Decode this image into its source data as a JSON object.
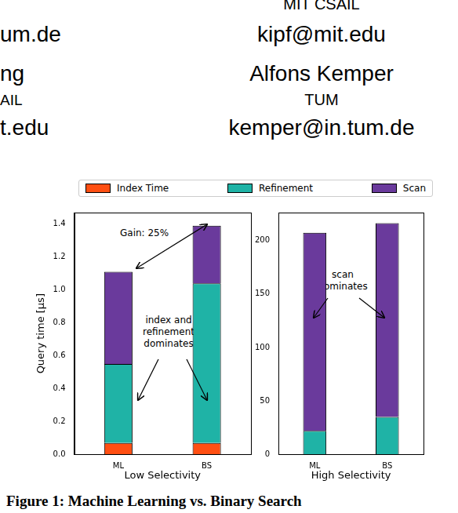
{
  "header": {
    "left": [
      "um.de",
      "ng",
      "AIL",
      "t.edu"
    ],
    "right": [
      "MIT CSAIL",
      "kipf@mit.edu",
      "Alfons Kemper",
      "TUM",
      "kemper@in.tum.de"
    ]
  },
  "chart_data": [
    {
      "type": "bar",
      "stacked": true,
      "legend": "top",
      "grid": false,
      "ylabel": "Query time [µs]",
      "xlabel": "Low Selectivity",
      "categories": [
        "ML",
        "BS"
      ],
      "series": [
        {
          "name": "Index Time",
          "color": "#ff4f12",
          "values": [
            0.07,
            0.07
          ]
        },
        {
          "name": "Refinement",
          "color": "#1fb3a6",
          "values": [
            0.48,
            0.97
          ]
        },
        {
          "name": "Scan",
          "color": "#6a3a9c",
          "values": [
            0.56,
            0.35
          ]
        }
      ],
      "ylim": [
        0,
        1.47
      ],
      "yticks": [
        {
          "value": 0,
          "label": "0.0"
        },
        0.2,
        0.4,
        0.6,
        0.8,
        {
          "value": 1,
          "label": "1.0"
        },
        1.2,
        1.4
      ],
      "annotations": [
        [
          "Gain: 25%"
        ],
        [
          "index and",
          "refinement",
          "dominates"
        ]
      ]
    },
    {
      "type": "bar",
      "stacked": true,
      "legend": "top",
      "grid": false,
      "xlabel": "High Selectivity",
      "categories": [
        "ML",
        "BS"
      ],
      "series": [
        {
          "name": "Index Time",
          "color": "#ff4f12",
          "values": [
            0.07,
            0.07
          ]
        },
        {
          "name": "Refinement",
          "color": "#1fb3a6",
          "values": [
            22,
            35
          ]
        },
        {
          "name": "Scan",
          "color": "#6a3a9c",
          "values": [
            185,
            181
          ]
        }
      ],
      "ylim": [
        0,
        226
      ],
      "yticks": [
        0,
        50,
        100,
        150,
        200
      ],
      "annotations": [
        [
          "scan",
          "dominates"
        ]
      ]
    }
  ],
  "caption": "Figure 1: Machine Learning vs. Binary Search"
}
